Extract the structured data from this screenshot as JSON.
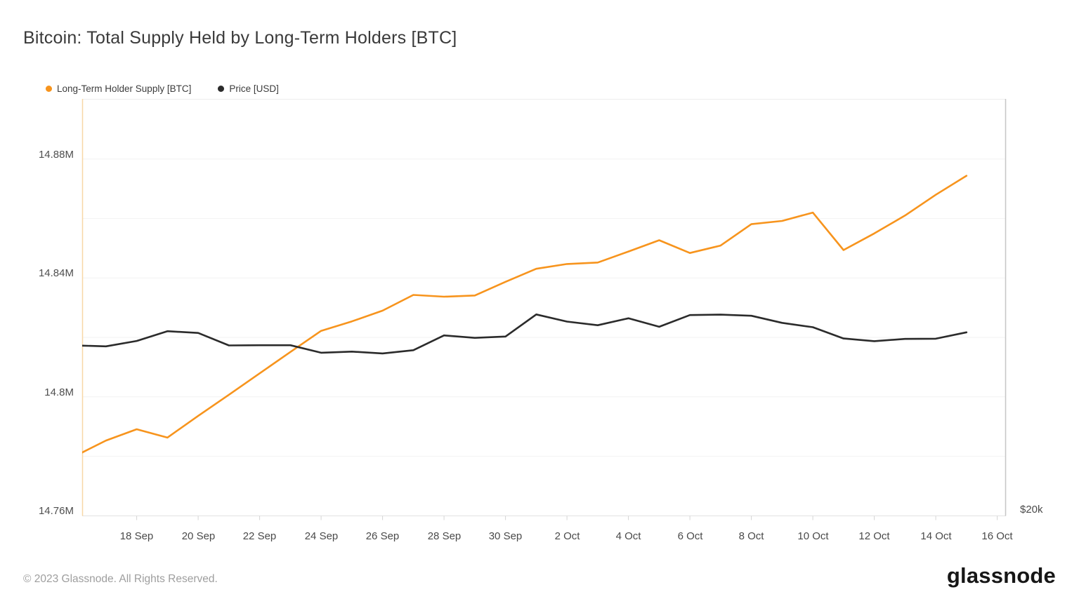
{
  "page": {
    "title": "Bitcoin: Total Supply Held by Long-Term Holders [BTC]",
    "footer_copyright": "© 2023 Glassnode. All Rights Reserved.",
    "brand_logo_text": "glassnode"
  },
  "legend": {
    "items": [
      {
        "label": "Long-Term Holder Supply [BTC]",
        "color": "#f7941d"
      },
      {
        "label": "Price [USD]",
        "color": "#2b2b2b"
      }
    ]
  },
  "chart_data": {
    "type": "line",
    "title": "Bitcoin: Total Supply Held by Long-Term Holders [BTC]",
    "grid": "horizontal",
    "legend_position": "top-left",
    "x": [
      "16 Sep",
      "17 Sep",
      "18 Sep",
      "19 Sep",
      "20 Sep",
      "21 Sep",
      "22 Sep",
      "23 Sep",
      "24 Sep",
      "25 Sep",
      "26 Sep",
      "27 Sep",
      "28 Sep",
      "29 Sep",
      "30 Sep",
      "1 Oct",
      "2 Oct",
      "3 Oct",
      "4 Oct",
      "5 Oct",
      "6 Oct",
      "7 Oct",
      "8 Oct",
      "9 Oct",
      "10 Oct",
      "11 Oct",
      "12 Oct",
      "13 Oct",
      "14 Oct",
      "15 Oct"
    ],
    "series": [
      {
        "name": "Long-Term Holder Supply [BTC]",
        "color": "#f7941d",
        "axis": "left",
        "unit": "M BTC",
        "values": [
          14.7801,
          14.7853,
          14.7891,
          14.7863,
          14.7936,
          14.8007,
          14.8079,
          14.8151,
          14.8222,
          14.8254,
          14.829,
          14.8343,
          14.8337,
          14.8341,
          14.8387,
          14.8431,
          14.8447,
          14.8452,
          14.8489,
          14.8527,
          14.8484,
          14.8509,
          14.8581,
          14.8592,
          14.862,
          14.8494,
          14.855,
          14.861,
          14.868,
          14.8744
        ]
      },
      {
        "name": "Price [USD]",
        "color": "#2b2b2b",
        "axis": "right",
        "unit": "USD",
        "values": [
          26570,
          26530,
          26770,
          27210,
          27130,
          26570,
          26580,
          26580,
          26250,
          26300,
          26220,
          26360,
          27020,
          26910,
          26970,
          27980,
          27650,
          27480,
          27800,
          27410,
          27950,
          27970,
          27920,
          27590,
          27390,
          26880,
          26760,
          26860,
          26870,
          27160
        ]
      }
    ],
    "left_axis": {
      "range": [
        14.76,
        14.9
      ],
      "gridline_step": 0.02,
      "ticks": [
        {
          "label": "14.88M",
          "value": 14.88
        },
        {
          "label": "14.84M",
          "value": 14.84
        },
        {
          "label": "14.8M",
          "value": 14.8
        },
        {
          "label": "14.76M",
          "value": 14.76
        }
      ]
    },
    "right_axis": {
      "scale": "log",
      "bottom_value": 20000,
      "tick_labels": [
        "$20k"
      ]
    },
    "x_axis": {
      "tick_labels": [
        "18 Sep",
        "20 Sep",
        "22 Sep",
        "24 Sep",
        "26 Sep",
        "28 Sep",
        "30 Sep",
        "2 Oct",
        "4 Oct",
        "6 Oct",
        "8 Oct",
        "10 Oct",
        "12 Oct",
        "14 Oct",
        "16 Oct"
      ]
    }
  }
}
